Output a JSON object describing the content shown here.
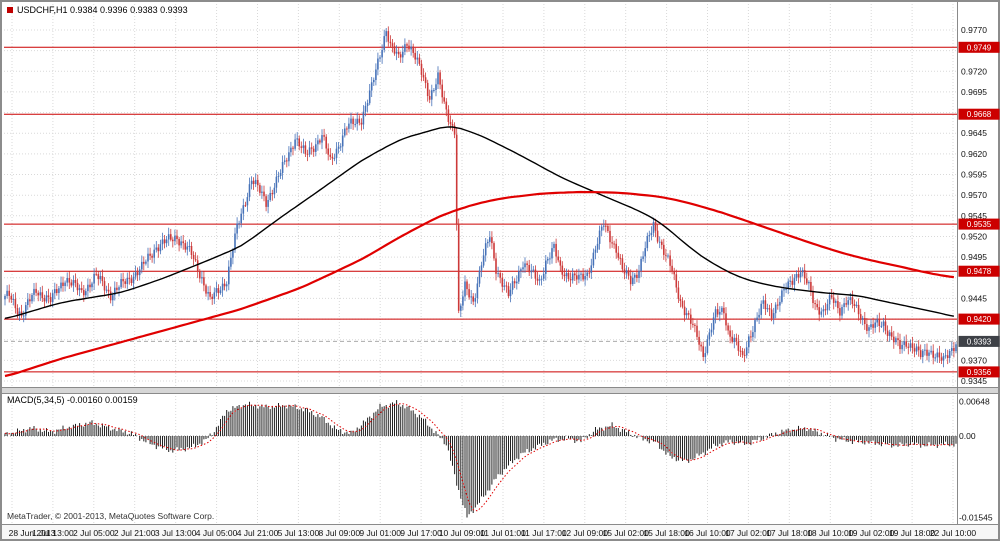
{
  "window": {
    "title": "USDCHF,H1 0.9384 0.9396 0.9383 0.9393",
    "copyright": "MetaTrader, © 2001-2013, MetaQuotes Software Corp."
  },
  "colors": {
    "up": "#4672b8",
    "down": "#cc3939",
    "ma_fast": "#000000",
    "ma_slow": "#e00000",
    "level": "#cc0000",
    "badge": "#cc0000",
    "badge_text": "#ffffff",
    "current_badge": "#3e4147",
    "grid": "#d9d9d9",
    "hist": "#202020",
    "signal": "#e00000"
  },
  "chart_data": {
    "type": "candlestick",
    "symbol": "USDCHF",
    "timeframe": "H1",
    "ohlc_current": {
      "open": "0.9384",
      "high": "0.9396",
      "low": "0.9383",
      "close": "0.9393"
    },
    "price_axis_ticks": [
      "0.9770",
      "0.9745",
      "0.9720",
      "0.9695",
      "0.9670",
      "0.9645",
      "0.9620",
      "0.9595",
      "0.9570",
      "0.9545",
      "0.9520",
      "0.9495",
      "0.9470",
      "0.9445",
      "0.9420",
      "0.9395",
      "0.9370",
      "0.9345"
    ],
    "price_axis_range": [
      0.9345,
      0.977
    ],
    "horizontal_levels": [
      "0.9749",
      "0.9668",
      "0.9535",
      "0.9478",
      "0.9420",
      "0.9356"
    ],
    "current_price": "0.9393",
    "time_axis_ticks": [
      "28 Jun 2013",
      "1 Jul 13:00",
      "2 Jul 05:00",
      "2 Jul 21:00",
      "3 Jul 13:00",
      "4 Jul 05:00",
      "4 Jul 21:00",
      "5 Jul 13:00",
      "8 Jul 09:00",
      "9 Jul 01:00",
      "9 Jul 17:00",
      "10 Jul 09:00",
      "11 Jul 01:00",
      "11 Jul 17:00",
      "12 Jul 09:00",
      "15 Jul 02:00",
      "15 Jul 18:00",
      "16 Jul 10:00",
      "17 Jul 02:00",
      "17 Jul 18:00",
      "18 Jul 10:00",
      "19 Jul 02:00",
      "19 Jul 18:00",
      "22 Jul 10:00"
    ],
    "bars": 460,
    "close_path": [
      [
        0,
        0.9445
      ],
      [
        2,
        0.9448
      ],
      [
        8,
        0.9425
      ],
      [
        15,
        0.9455
      ],
      [
        22,
        0.9442
      ],
      [
        29,
        0.947
      ],
      [
        37,
        0.9452
      ],
      [
        44,
        0.9472
      ],
      [
        51,
        0.945
      ],
      [
        58,
        0.9465
      ],
      [
        66,
        0.9482
      ],
      [
        73,
        0.9508
      ],
      [
        83,
        0.952
      ],
      [
        90,
        0.9498
      ],
      [
        95,
        0.947
      ],
      [
        99,
        0.9442
      ],
      [
        107,
        0.9468
      ],
      [
        112,
        0.953
      ],
      [
        119,
        0.959
      ],
      [
        126,
        0.9562
      ],
      [
        133,
        0.9597
      ],
      [
        140,
        0.964
      ],
      [
        145,
        0.9618
      ],
      [
        153,
        0.9642
      ],
      [
        157,
        0.961
      ],
      [
        165,
        0.9652
      ],
      [
        172,
        0.9663
      ],
      [
        177,
        0.97
      ],
      [
        184,
        0.9772
      ],
      [
        186,
        0.975
      ],
      [
        190,
        0.9735
      ],
      [
        194,
        0.9757
      ],
      [
        197,
        0.9742
      ],
      [
        201,
        0.9718
      ],
      [
        205,
        0.969
      ],
      [
        209,
        0.9712
      ],
      [
        212,
        0.9678
      ],
      [
        215,
        0.9658
      ],
      [
        217,
        0.965
      ],
      [
        219,
        0.9425
      ],
      [
        222,
        0.9458
      ],
      [
        226,
        0.9442
      ],
      [
        230,
        0.9488
      ],
      [
        234,
        0.952
      ],
      [
        237,
        0.9482
      ],
      [
        243,
        0.9448
      ],
      [
        247,
        0.947
      ],
      [
        250,
        0.949
      ],
      [
        254,
        0.9475
      ],
      [
        258,
        0.9465
      ],
      [
        261,
        0.949
      ],
      [
        265,
        0.9505
      ],
      [
        268,
        0.948
      ],
      [
        272,
        0.9473
      ],
      [
        277,
        0.9468
      ],
      [
        281,
        0.9475
      ],
      [
        285,
        0.9505
      ],
      [
        289,
        0.9535
      ],
      [
        292,
        0.952
      ],
      [
        295,
        0.9505
      ],
      [
        298,
        0.9478
      ],
      [
        302,
        0.9468
      ],
      [
        306,
        0.948
      ],
      [
        309,
        0.9505
      ],
      [
        313,
        0.9535
      ],
      [
        316,
        0.9515
      ],
      [
        319,
        0.9495
      ],
      [
        322,
        0.9478
      ],
      [
        326,
        0.9442
      ],
      [
        330,
        0.942
      ],
      [
        334,
        0.94
      ],
      [
        337,
        0.9378
      ],
      [
        340,
        0.9402
      ],
      [
        343,
        0.9425
      ],
      [
        347,
        0.9432
      ],
      [
        349,
        0.9405
      ],
      [
        353,
        0.9388
      ],
      [
        356,
        0.9372
      ],
      [
        359,
        0.9398
      ],
      [
        363,
        0.942
      ],
      [
        366,
        0.9438
      ],
      [
        370,
        0.9428
      ],
      [
        374,
        0.9442
      ],
      [
        377,
        0.9458
      ],
      [
        381,
        0.9472
      ],
      [
        384,
        0.9478
      ],
      [
        388,
        0.9458
      ],
      [
        391,
        0.9438
      ],
      [
        395,
        0.9428
      ],
      [
        399,
        0.9445
      ],
      [
        403,
        0.9432
      ],
      [
        406,
        0.9442
      ],
      [
        409,
        0.9438
      ],
      [
        413,
        0.9425
      ],
      [
        417,
        0.9408
      ],
      [
        420,
        0.9412
      ],
      [
        424,
        0.9415
      ],
      [
        428,
        0.9398
      ],
      [
        432,
        0.9385
      ],
      [
        435,
        0.9392
      ],
      [
        438,
        0.9388
      ],
      [
        442,
        0.9375
      ],
      [
        446,
        0.9382
      ],
      [
        449,
        0.9378
      ],
      [
        453,
        0.9368
      ],
      [
        456,
        0.938
      ],
      [
        459,
        0.9393
      ]
    ],
    "ma_black_path": [
      [
        0,
        0.942
      ],
      [
        27,
        0.944
      ],
      [
        56,
        0.9452
      ],
      [
        75,
        0.9468
      ],
      [
        95,
        0.9488
      ],
      [
        114,
        0.9508
      ],
      [
        133,
        0.9543
      ],
      [
        153,
        0.9578
      ],
      [
        172,
        0.9612
      ],
      [
        191,
        0.9638
      ],
      [
        215,
        0.9655
      ],
      [
        230,
        0.9642
      ],
      [
        249,
        0.9618
      ],
      [
        268,
        0.9592
      ],
      [
        288,
        0.957
      ],
      [
        307,
        0.955
      ],
      [
        317,
        0.9536
      ],
      [
        326,
        0.9516
      ],
      [
        336,
        0.9496
      ],
      [
        346,
        0.9481
      ],
      [
        355,
        0.947
      ],
      [
        365,
        0.9463
      ],
      [
        375,
        0.9458
      ],
      [
        384,
        0.9455
      ],
      [
        394,
        0.9452
      ],
      [
        404,
        0.945
      ],
      [
        413,
        0.9448
      ],
      [
        423,
        0.9442
      ],
      [
        433,
        0.9437
      ],
      [
        442,
        0.9432
      ],
      [
        452,
        0.9427
      ],
      [
        459,
        0.9422
      ]
    ],
    "ma_red_path": [
      [
        0,
        0.935
      ],
      [
        27,
        0.9372
      ],
      [
        56,
        0.9392
      ],
      [
        85,
        0.9412
      ],
      [
        114,
        0.9432
      ],
      [
        143,
        0.9458
      ],
      [
        172,
        0.9492
      ],
      [
        191,
        0.952
      ],
      [
        210,
        0.9545
      ],
      [
        225,
        0.9558
      ],
      [
        239,
        0.9566
      ],
      [
        259,
        0.9572
      ],
      [
        278,
        0.9574
      ],
      [
        297,
        0.9573
      ],
      [
        317,
        0.9568
      ],
      [
        331,
        0.956
      ],
      [
        346,
        0.9549
      ],
      [
        360,
        0.9537
      ],
      [
        375,
        0.9524
      ],
      [
        389,
        0.9512
      ],
      [
        404,
        0.95
      ],
      [
        418,
        0.9491
      ],
      [
        433,
        0.9483
      ],
      [
        447,
        0.9475
      ],
      [
        459,
        0.947
      ]
    ],
    "macd": {
      "label": "MACD(5,34,5) -0.00160 0.00159",
      "params": "5,34,5",
      "axis_ticks": [
        "0.00648",
        "0.00",
        "-0.01545"
      ],
      "range": [
        -0.01545,
        0.00648
      ],
      "path": [
        [
          0,
          0.0003
        ],
        [
          2,
          0.0005
        ],
        [
          13,
          0.0015
        ],
        [
          22,
          0.0008
        ],
        [
          32,
          0.0018
        ],
        [
          42,
          0.0025
        ],
        [
          51,
          0.0015
        ],
        [
          61,
          0.0005
        ],
        [
          70,
          -0.0015
        ],
        [
          80,
          -0.0028
        ],
        [
          90,
          -0.0022
        ],
        [
          97,
          -0.0008
        ],
        [
          102,
          0.0015
        ],
        [
          107,
          0.0048
        ],
        [
          116,
          0.006
        ],
        [
          126,
          0.0055
        ],
        [
          136,
          0.0058
        ],
        [
          145,
          0.005
        ],
        [
          153,
          0.0035
        ],
        [
          160,
          0.0012
        ],
        [
          167,
          0.0005
        ],
        [
          174,
          0.0028
        ],
        [
          181,
          0.0055
        ],
        [
          189,
          0.0063
        ],
        [
          196,
          0.005
        ],
        [
          203,
          0.0028
        ],
        [
          208,
          0.0005
        ],
        [
          213,
          -0.0015
        ],
        [
          218,
          -0.009
        ],
        [
          223,
          -0.0154
        ],
        [
          227,
          -0.0135
        ],
        [
          232,
          -0.011
        ],
        [
          237,
          -0.008
        ],
        [
          242,
          -0.006
        ],
        [
          249,
          -0.0035
        ],
        [
          256,
          -0.0022
        ],
        [
          264,
          -0.0008
        ],
        [
          271,
          -0.0005
        ],
        [
          278,
          -0.001
        ],
        [
          285,
          0.0012
        ],
        [
          293,
          0.002
        ],
        [
          300,
          0.0008
        ],
        [
          307,
          -0.0005
        ],
        [
          314,
          -0.0012
        ],
        [
          321,
          -0.004
        ],
        [
          329,
          -0.0048
        ],
        [
          336,
          -0.0035
        ],
        [
          343,
          -0.0018
        ],
        [
          350,
          -0.001
        ],
        [
          358,
          -0.0015
        ],
        [
          365,
          -0.0005
        ],
        [
          372,
          0.0005
        ],
        [
          379,
          0.0012
        ],
        [
          387,
          0.0015
        ],
        [
          394,
          0.0005
        ],
        [
          401,
          -0.0005
        ],
        [
          408,
          -0.001
        ],
        [
          416,
          -0.0012
        ],
        [
          423,
          -0.0015
        ],
        [
          430,
          -0.0018
        ],
        [
          437,
          -0.0015
        ],
        [
          445,
          -0.0018
        ],
        [
          452,
          -0.0016
        ],
        [
          459,
          -0.0016
        ]
      ]
    }
  }
}
